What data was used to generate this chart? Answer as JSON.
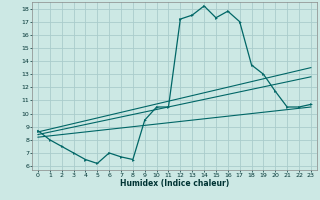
{
  "xlabel": "Humidex (Indice chaleur)",
  "bg_color": "#cce8e4",
  "grid_color": "#aacccc",
  "line_color": "#006666",
  "xlim": [
    -0.5,
    23.5
  ],
  "ylim": [
    5.7,
    18.5
  ],
  "xticks": [
    0,
    1,
    2,
    3,
    4,
    5,
    6,
    7,
    8,
    9,
    10,
    11,
    12,
    13,
    14,
    15,
    16,
    17,
    18,
    19,
    20,
    21,
    22,
    23
  ],
  "yticks": [
    6,
    7,
    8,
    9,
    10,
    11,
    12,
    13,
    14,
    15,
    16,
    17,
    18
  ],
  "curve1_x": [
    0,
    1,
    2,
    3,
    4,
    5,
    6,
    7,
    8,
    9,
    10,
    11,
    12,
    13,
    14,
    15,
    16,
    17,
    18,
    19,
    20,
    21,
    22,
    23
  ],
  "curve1_y": [
    8.7,
    8.0,
    7.5,
    7.0,
    6.5,
    6.2,
    7.0,
    6.7,
    6.5,
    9.5,
    10.5,
    10.5,
    17.2,
    17.5,
    18.2,
    17.3,
    17.8,
    17.0,
    13.7,
    13.0,
    11.7,
    10.5,
    10.5,
    10.7
  ],
  "line1_x": [
    0,
    23
  ],
  "line1_y": [
    8.6,
    13.5
  ],
  "line2_x": [
    0,
    23
  ],
  "line2_y": [
    8.4,
    12.8
  ],
  "line3_x": [
    0,
    23
  ],
  "line3_y": [
    8.2,
    10.5
  ],
  "tick_fontsize": 4.5,
  "xlabel_fontsize": 5.5
}
